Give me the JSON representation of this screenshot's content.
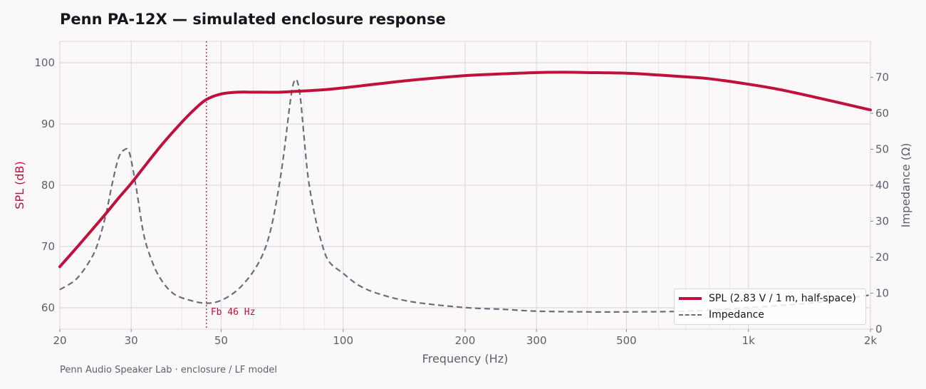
{
  "page": {
    "title": "Penn PA-12X — simulated enclosure response",
    "footer": "Penn Audio Speaker Lab · enclosure / LF model"
  },
  "colors": {
    "spl": "#c0103c",
    "impedance": "#6b6d7c",
    "grid": "#e0dce2",
    "text": "#5d5f6e"
  },
  "chart_data": {
    "type": "line",
    "title": "Penn PA-12X — simulated enclosure response",
    "xlabel": "Frequency  (Hz)",
    "xscale": "log",
    "xlim": [
      20,
      2000
    ],
    "x_ticks": [
      20,
      30,
      50,
      100,
      200,
      300,
      500,
      1000,
      2000
    ],
    "x_tick_labels": [
      "20",
      "30",
      "50",
      "100",
      "200",
      "300",
      "500",
      "1k",
      "2k"
    ],
    "y_left": {
      "label": "SPL  (dB)",
      "lim": [
        56.5,
        103.5
      ],
      "ticks": [
        60,
        70,
        80,
        90,
        100
      ],
      "tick_labels": [
        "60",
        "70",
        "80",
        "90",
        "100"
      ]
    },
    "y_right": {
      "label": "Impedance  (Ω)",
      "lim": [
        0,
        80
      ],
      "ticks": [
        0,
        10,
        20,
        30,
        40,
        50,
        60,
        70
      ],
      "tick_labels": [
        "0",
        "10",
        "20",
        "30",
        "40",
        "50",
        "60",
        "70"
      ]
    },
    "grid": true,
    "legend_position": "lower-right",
    "annotation": {
      "x": 46,
      "label": "Fb 46 Hz"
    },
    "series": [
      {
        "name": "SPL  (2.83 V / 1 m, half-space)",
        "axis": "left",
        "style": "solid",
        "x": [
          20,
          22,
          24,
          26,
          28,
          30,
          33,
          36,
          40,
          43,
          46,
          50,
          55,
          60,
          70,
          80,
          90,
          100,
          120,
          150,
          200,
          250,
          300,
          350,
          400,
          500,
          600,
          700,
          800,
          1000,
          1200,
          1500,
          2000
        ],
        "y": [
          66.7,
          69.8,
          72.7,
          75.4,
          78.0,
          80.3,
          83.8,
          86.9,
          90.3,
          92.4,
          94.0,
          94.9,
          95.2,
          95.2,
          95.2,
          95.4,
          95.6,
          95.9,
          96.5,
          97.2,
          97.9,
          98.2,
          98.4,
          98.45,
          98.4,
          98.3,
          98.0,
          97.7,
          97.4,
          96.5,
          95.6,
          94.2,
          92.3
        ]
      },
      {
        "name": "Impedance",
        "axis": "right",
        "style": "dashed",
        "x": [
          20,
          22,
          24,
          25,
          26,
          27,
          28,
          29,
          29.5,
          30,
          31,
          32,
          33,
          35,
          38,
          42,
          46,
          50,
          55,
          60,
          64,
          67,
          70,
          72,
          74,
          75.5,
          77,
          78.5,
          80,
          82,
          85,
          88,
          92,
          100,
          110,
          125,
          150,
          200,
          250,
          300,
          400,
          500,
          700,
          1000,
          1500,
          2000
        ],
        "y": [
          11,
          14,
          20,
          25,
          32,
          41,
          48,
          50,
          49.7,
          47,
          38,
          28,
          22,
          15,
          10,
          8,
          7.2,
          8,
          11,
          16,
          22,
          30,
          42,
          52,
          63,
          68.5,
          69,
          64,
          54,
          42,
          32,
          25,
          19,
          15.5,
          12,
          9.5,
          7.5,
          6,
          5.5,
          5,
          4.8,
          4.8,
          5,
          6,
          7.5,
          9.5
        ]
      }
    ]
  }
}
